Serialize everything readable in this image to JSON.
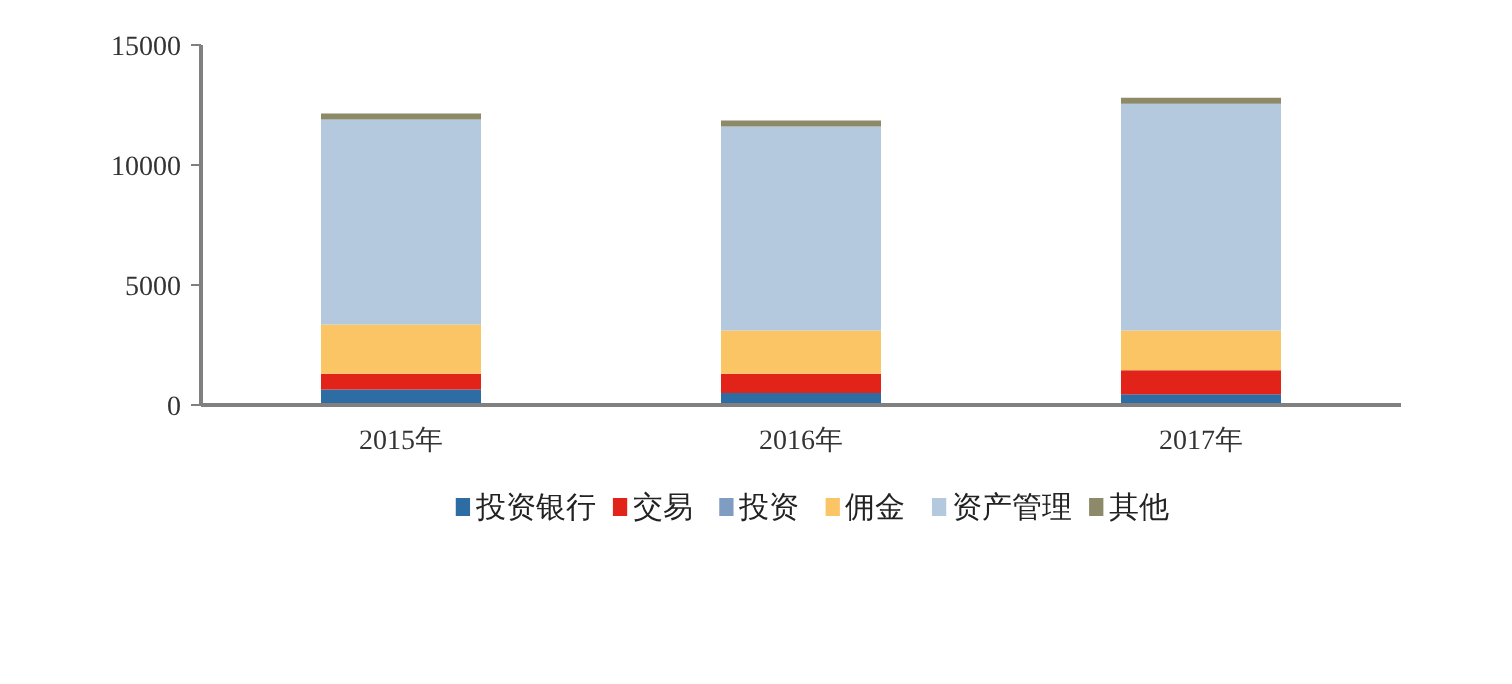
{
  "chart_data": {
    "type": "bar",
    "stacked": true,
    "categories": [
      "2015年",
      "2016年",
      "2017年"
    ],
    "series": [
      {
        "name": "投资银行",
        "color": "#2e6ca4",
        "values": [
          650,
          500,
          450
        ]
      },
      {
        "name": "交易",
        "color": "#e2231a",
        "values": [
          650,
          800,
          1000
        ]
      },
      {
        "name": "投资",
        "color": "#7f9cc3",
        "values": [
          0,
          0,
          0
        ]
      },
      {
        "name": "佣金",
        "color": "#fbc566",
        "values": [
          2050,
          1800,
          1650
        ]
      },
      {
        "name": "资产管理",
        "color": "#b4c8de",
        "values": [
          8550,
          8500,
          9450
        ]
      },
      {
        "name": "其他",
        "color": "#8c8a69",
        "values": [
          250,
          250,
          250
        ]
      }
    ],
    "ylim": [
      0,
      15000
    ],
    "yticks": [
      0,
      5000,
      10000,
      15000
    ],
    "grid": false,
    "legend": "bottom"
  }
}
